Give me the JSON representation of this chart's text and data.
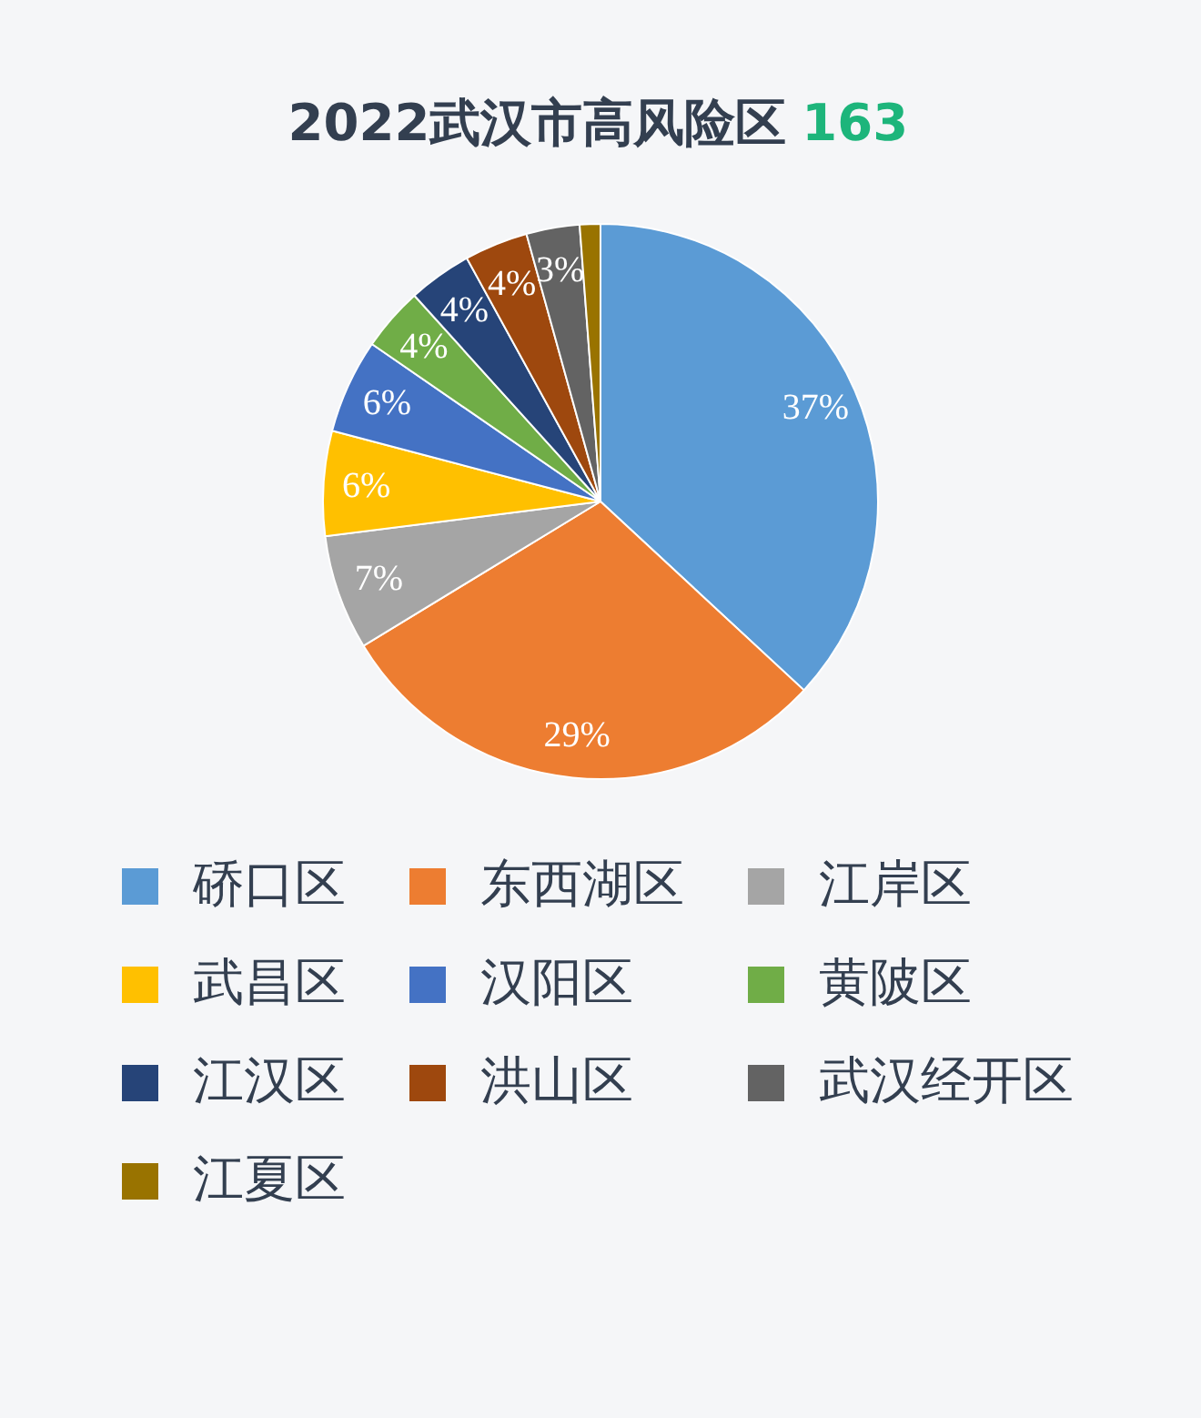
{
  "chart_data": {
    "type": "pie",
    "title": "2022武汉市高风险区 163",
    "categories": [
      "硚口区",
      "东西湖区",
      "江岸区",
      "武昌区",
      "汉阳区",
      "黄陂区",
      "江汉区",
      "洪山区",
      "武汉经开区",
      "江夏区"
    ],
    "values": [
      36.9,
      29.4,
      6.7,
      6.1,
      5.5,
      3.7,
      3.7,
      3.7,
      3.1,
      1.2
    ],
    "colors": [
      "#5b9bd5",
      "#ed7d31",
      "#a5a5a5",
      "#ffc000",
      "#4472c4",
      "#70ad47",
      "#264478",
      "#9e480e",
      "#636363",
      "#997300"
    ],
    "value_labels": [
      "37%",
      "29%",
      "7%",
      "6%",
      "6%",
      "4%",
      "4%",
      "4%",
      "3%",
      null
    ],
    "legend": "bottom"
  }
}
